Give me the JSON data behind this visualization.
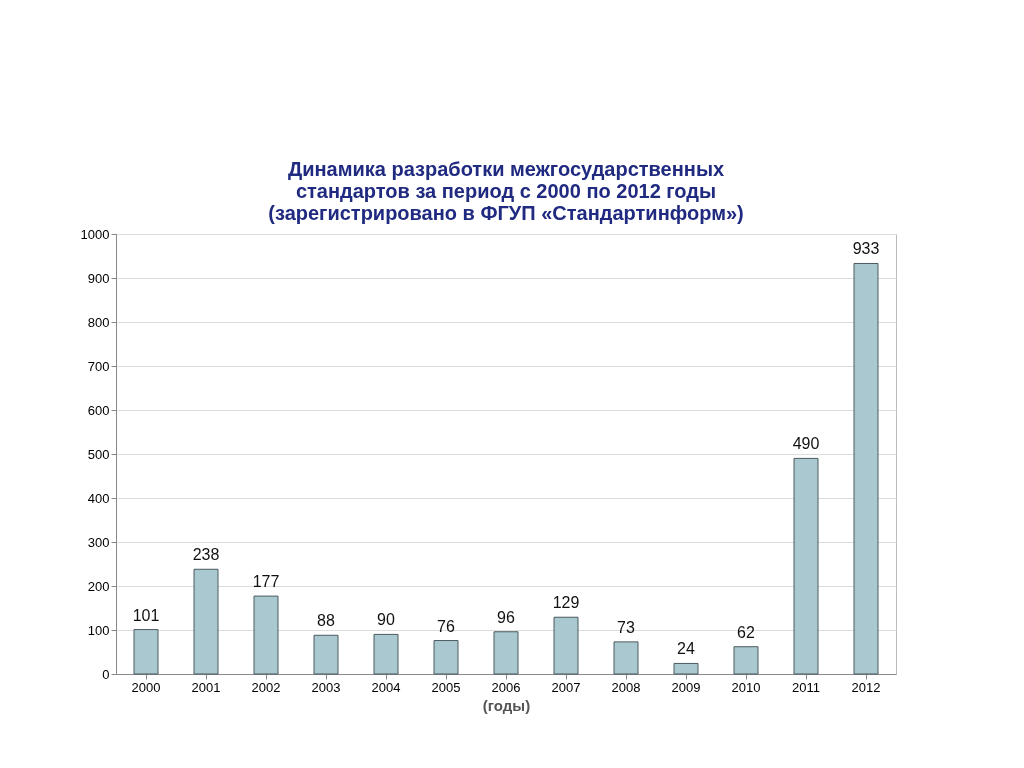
{
  "chart_data": {
    "type": "bar",
    "title": "Динамика разработки межгосударственных стандартов за период с 2000 по 2012 годы (зарегистрировано в ФГУП «Стандартинформ»)",
    "xlabel": "(годы)",
    "categories": [
      "2000",
      "2001",
      "2002",
      "2003",
      "2004",
      "2005",
      "2006",
      "2007",
      "2008",
      "2009",
      "2010",
      "2011",
      "2012"
    ],
    "values": [
      101,
      238,
      177,
      88,
      90,
      76,
      96,
      129,
      73,
      24,
      62,
      490,
      933
    ],
    "color": "#a9c8cf",
    "ylim": [
      0,
      1000
    ],
    "yticks": [
      0,
      100,
      200,
      300,
      400,
      500,
      600,
      700,
      800,
      900,
      1000
    ],
    "grid": "y",
    "data_labels": true
  }
}
